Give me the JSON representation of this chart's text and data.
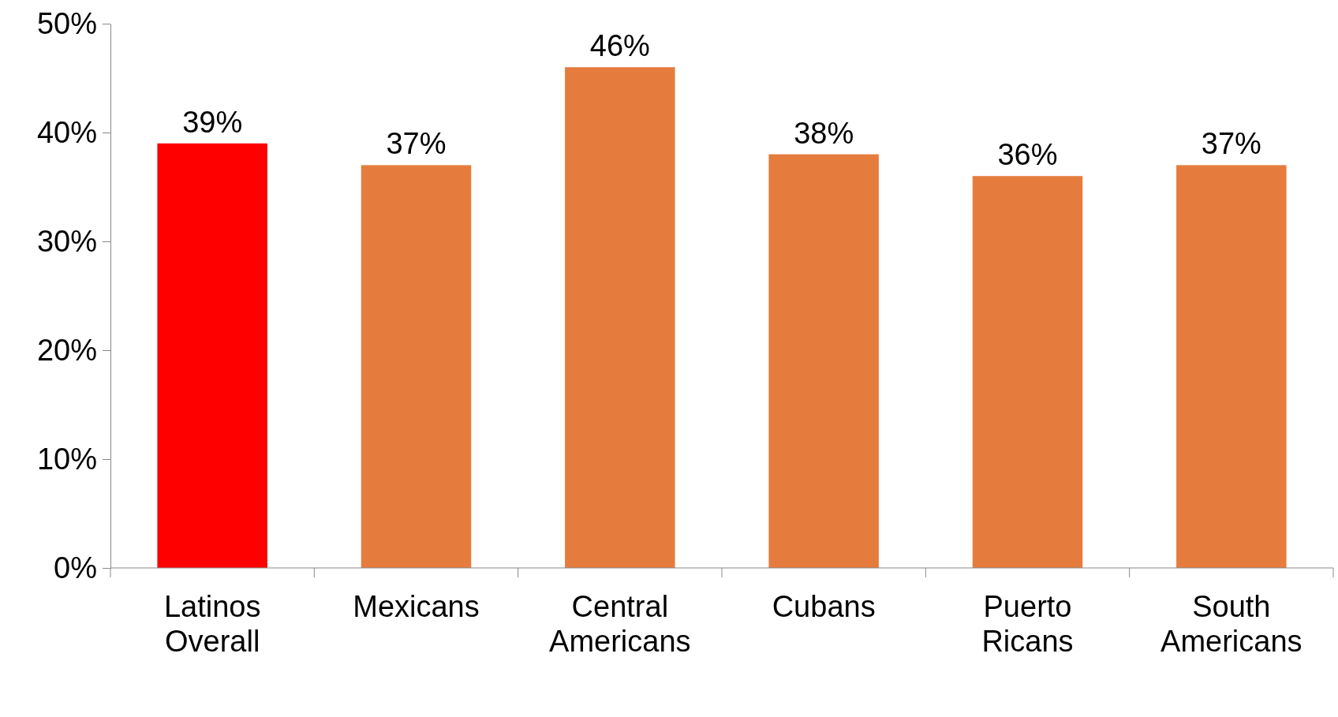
{
  "chart_data": {
    "type": "bar",
    "categories": [
      "Latinos Overall",
      "Mexicans",
      "Central Americans",
      "Cubans",
      "Puerto Ricans",
      "South Americans"
    ],
    "values": [
      39,
      37,
      46,
      38,
      36,
      37
    ],
    "value_labels": [
      "39%",
      "37%",
      "46%",
      "38%",
      "36%",
      "37%"
    ],
    "colors": [
      "#ff0000",
      "#e57c3e",
      "#e57c3e",
      "#e57c3e",
      "#e57c3e",
      "#e57c3e"
    ],
    "ylim": [
      0,
      50
    ],
    "yticks": [
      {
        "value": 0,
        "label": "0%"
      },
      {
        "value": 10,
        "label": "10%"
      },
      {
        "value": 20,
        "label": "20%"
      },
      {
        "value": 30,
        "label": "30%"
      },
      {
        "value": 40,
        "label": "40%"
      },
      {
        "value": 50,
        "label": "50%"
      }
    ],
    "grid": false
  }
}
